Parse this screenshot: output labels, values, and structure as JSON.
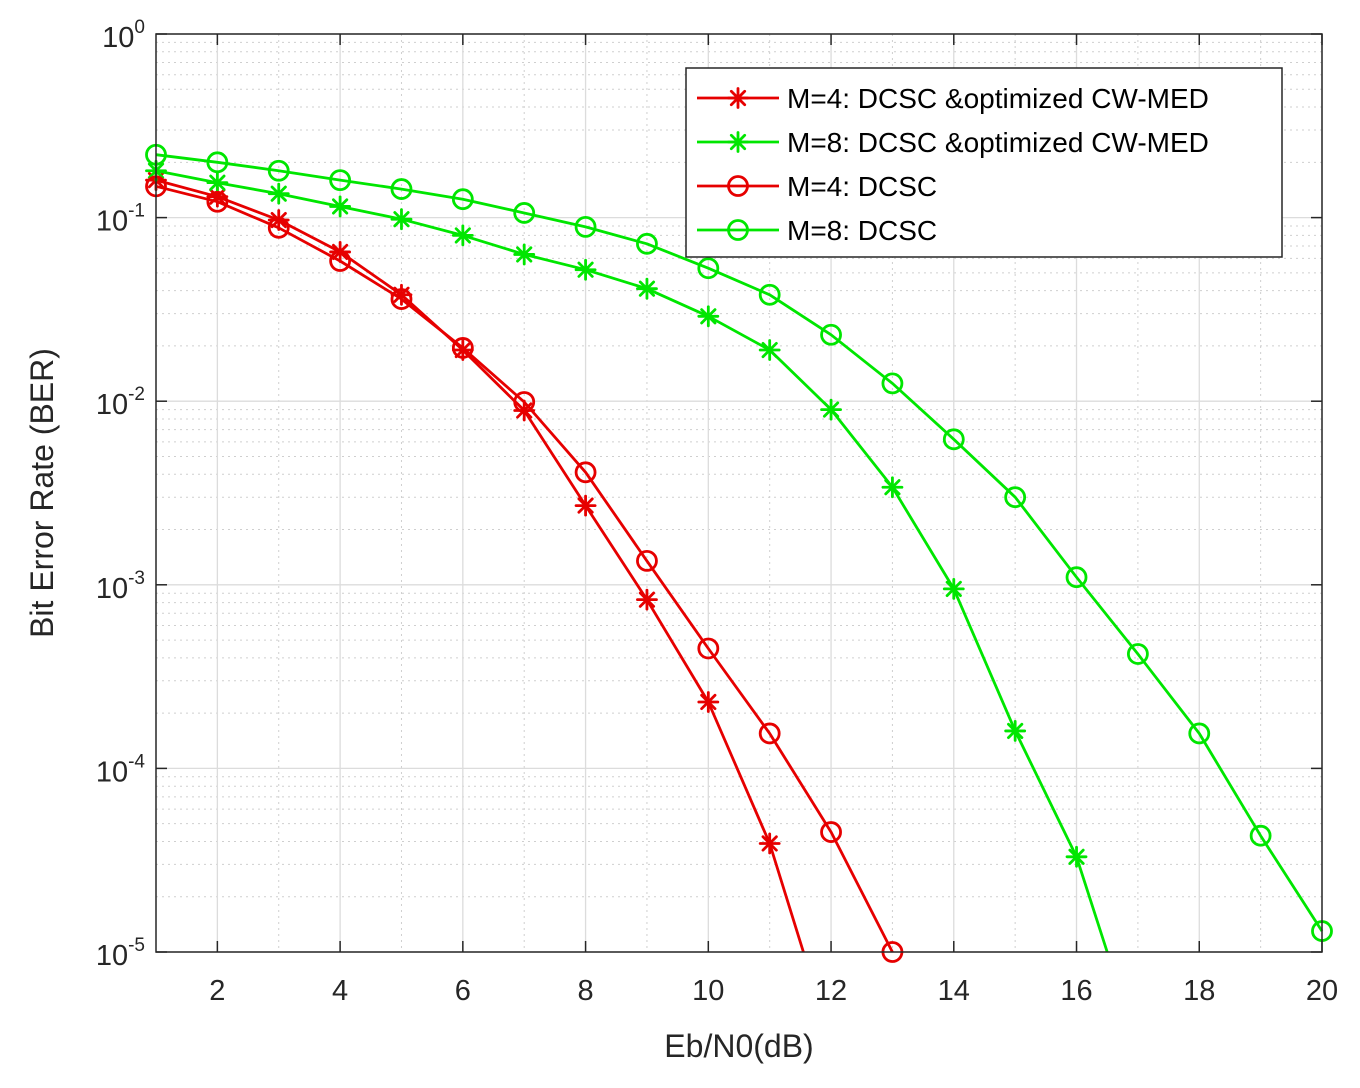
{
  "chart_data": {
    "type": "line",
    "xlabel": "Eb/N0(dB)",
    "ylabel": "Bit Error Rate (BER)",
    "xlim": [
      1,
      20
    ],
    "ylim": [
      1e-05,
      1
    ],
    "yscale": "log",
    "grid": true,
    "legend_position": "top-right",
    "x_ticks": [
      2,
      4,
      6,
      8,
      10,
      12,
      14,
      16,
      18,
      20
    ],
    "y_ticks": [
      {
        "base": "10",
        "exp": "0",
        "value": 1
      },
      {
        "base": "10",
        "exp": "-1",
        "value": 0.1
      },
      {
        "base": "10",
        "exp": "-2",
        "value": 0.01
      },
      {
        "base": "10",
        "exp": "-3",
        "value": 0.001
      },
      {
        "base": "10",
        "exp": "-4",
        "value": 0.0001
      },
      {
        "base": "10",
        "exp": "-5",
        "value": 1e-05
      }
    ],
    "series": [
      {
        "name": "M=4: DCSC &optimized CW-MED",
        "color": "#e60000",
        "marker": "asterisk",
        "x": [
          1,
          2,
          3,
          4,
          5,
          6,
          7,
          8,
          9,
          10,
          11,
          11.55
        ],
        "y": [
          0.16,
          0.13,
          0.097,
          0.065,
          0.038,
          0.019,
          0.0089,
          0.0027,
          0.00083,
          0.00023,
          3.9e-05,
          1e-05
        ],
        "marker_count": 11
      },
      {
        "name": "M=8: DCSC &optimized CW-MED",
        "color": "#00e600",
        "marker": "asterisk",
        "x": [
          1,
          2,
          3,
          4,
          5,
          6,
          7,
          8,
          9,
          10,
          11,
          12,
          13,
          14,
          15,
          16,
          16.5
        ],
        "y": [
          0.18,
          0.155,
          0.135,
          0.115,
          0.098,
          0.08,
          0.063,
          0.052,
          0.041,
          0.029,
          0.019,
          0.009,
          0.0034,
          0.00095,
          0.00016,
          3.3e-05,
          1e-05
        ],
        "marker_count": 16
      },
      {
        "name": "M=4: DCSC",
        "color": "#e60000",
        "marker": "circle",
        "x": [
          1,
          2,
          3,
          4,
          5,
          6,
          7,
          8,
          9,
          10,
          11,
          12,
          13
        ],
        "y": [
          0.148,
          0.122,
          0.088,
          0.058,
          0.036,
          0.0195,
          0.0099,
          0.0041,
          0.00135,
          0.00045,
          0.000155,
          4.5e-05,
          1e-05
        ],
        "marker_count": 13
      },
      {
        "name": "M=8: DCSC",
        "color": "#00e600",
        "marker": "circle",
        "x": [
          1,
          2,
          3,
          4,
          5,
          6,
          7,
          8,
          9,
          10,
          11,
          12,
          13,
          14,
          15,
          16,
          17,
          18,
          19,
          20
        ],
        "y": [
          0.22,
          0.2,
          0.18,
          0.16,
          0.143,
          0.126,
          0.106,
          0.089,
          0.072,
          0.053,
          0.038,
          0.023,
          0.0125,
          0.0062,
          0.003,
          0.0011,
          0.00042,
          0.000155,
          4.3e-05,
          1.3e-05
        ],
        "marker_count": 20
      }
    ]
  }
}
